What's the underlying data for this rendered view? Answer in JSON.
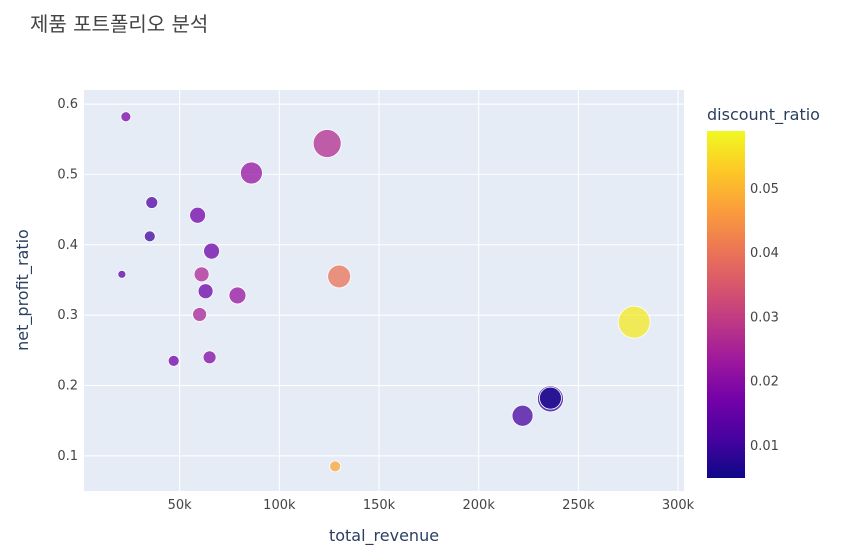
{
  "chart_data": {
    "type": "scatter",
    "title": "제품 포트폴리오 분석",
    "xlabel": "total_revenue",
    "ylabel": "net_profit_ratio",
    "xlim": [
      2000,
      303000
    ],
    "ylim": [
      0.05,
      0.62
    ],
    "x_ticks": [
      50000,
      100000,
      150000,
      200000,
      250000,
      300000
    ],
    "x_tick_labels": [
      "50k",
      "100k",
      "150k",
      "200k",
      "250k",
      "300k"
    ],
    "y_ticks": [
      0.1,
      0.2,
      0.3,
      0.4,
      0.5,
      0.6
    ],
    "y_tick_labels": [
      "0.1",
      "0.2",
      "0.3",
      "0.4",
      "0.5",
      "0.6"
    ],
    "grid": true,
    "colorbar": {
      "title": "discount_ratio",
      "min": 0.005,
      "max": 0.059,
      "ticks": [
        0.01,
        0.02,
        0.03,
        0.04,
        0.05
      ],
      "tick_labels": [
        "0.01",
        "0.02",
        "0.03",
        "0.04",
        "0.05"
      ],
      "colorscale": [
        "#0d0887",
        "#46039f",
        "#7201a8",
        "#9c179e",
        "#bd3786",
        "#d8576b",
        "#ed7953",
        "#fb9f3a",
        "#fdca26",
        "#f0f921"
      ]
    },
    "points": [
      {
        "x": 23000,
        "y": 0.582,
        "size": 10,
        "color_value": 0.018
      },
      {
        "x": 124000,
        "y": 0.544,
        "size": 28,
        "color_value": 0.027
      },
      {
        "x": 86000,
        "y": 0.502,
        "size": 22,
        "color_value": 0.022
      },
      {
        "x": 36000,
        "y": 0.46,
        "size": 12,
        "color_value": 0.012
      },
      {
        "x": 59000,
        "y": 0.442,
        "size": 16,
        "color_value": 0.017
      },
      {
        "x": 35000,
        "y": 0.412,
        "size": 11,
        "color_value": 0.01
      },
      {
        "x": 66000,
        "y": 0.391,
        "size": 16,
        "color_value": 0.016
      },
      {
        "x": 21000,
        "y": 0.358,
        "size": 8,
        "color_value": 0.014
      },
      {
        "x": 61000,
        "y": 0.358,
        "size": 15,
        "color_value": 0.026
      },
      {
        "x": 130000,
        "y": 0.355,
        "size": 23,
        "color_value": 0.04
      },
      {
        "x": 63000,
        "y": 0.334,
        "size": 15,
        "color_value": 0.016
      },
      {
        "x": 79000,
        "y": 0.328,
        "size": 17,
        "color_value": 0.022
      },
      {
        "x": 60000,
        "y": 0.301,
        "size": 14,
        "color_value": 0.025
      },
      {
        "x": 278000,
        "y": 0.29,
        "size": 32,
        "color_value": 0.057
      },
      {
        "x": 65000,
        "y": 0.24,
        "size": 13,
        "color_value": 0.019
      },
      {
        "x": 47000,
        "y": 0.235,
        "size": 11,
        "color_value": 0.017
      },
      {
        "x": 236000,
        "y": 0.182,
        "size": 22,
        "color_value": 0.006
      },
      {
        "x": 236000,
        "y": 0.181,
        "size": 26,
        "color_value": 0.009
      },
      {
        "x": 222000,
        "y": 0.157,
        "size": 21,
        "color_value": 0.011
      },
      {
        "x": 128000,
        "y": 0.085,
        "size": 11,
        "color_value": 0.048
      }
    ]
  }
}
